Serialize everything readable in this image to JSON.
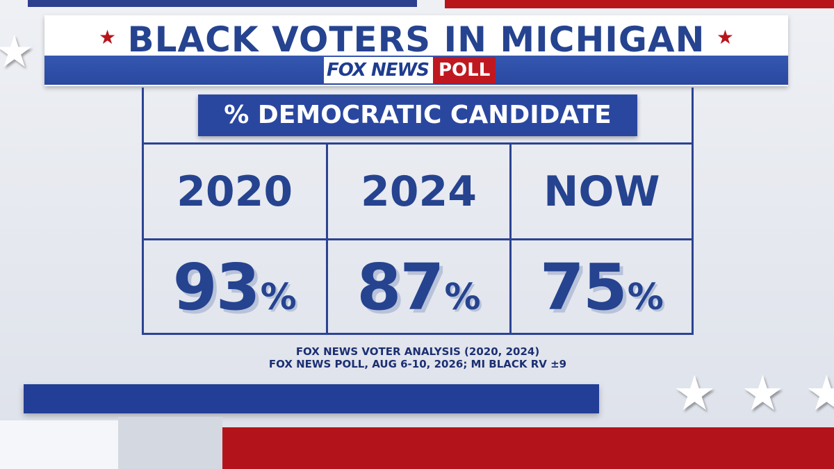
{
  "header": {
    "title": "BLACK VOTERS IN MICHIGAN",
    "logo_brand": "FOX NEWS",
    "logo_poll": "POLL"
  },
  "subtitle": "% DEMOCRATIC CANDIDATE",
  "columns": [
    {
      "label": "2020",
      "value": "93",
      "unit": "%"
    },
    {
      "label": "2024",
      "value": "87",
      "unit": "%"
    },
    {
      "label": "NOW",
      "value": "75",
      "unit": "%"
    }
  ],
  "source": {
    "line1": "FOX NEWS VOTER ANALYSIS (2020, 2024)",
    "line2": "FOX NEWS POLL, AUG 6-10, 2026; MI BLACK RV ±9"
  },
  "colors": {
    "navy": "#25438f",
    "red": "#b8151b",
    "band_blue": "#2a48a0"
  }
}
